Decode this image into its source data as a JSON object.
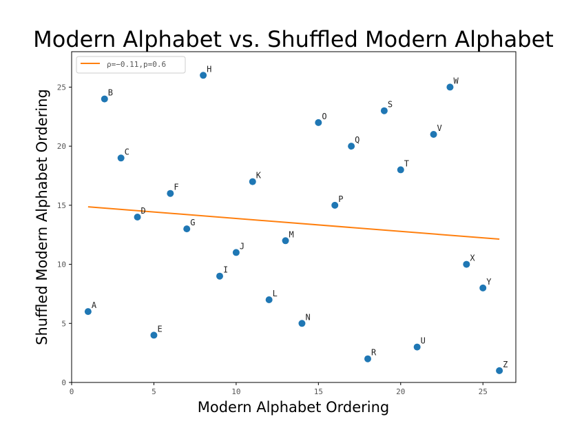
{
  "chart_data": {
    "type": "scatter",
    "title": "Modern Alphabet vs. Shuffled Modern Alphabet",
    "xlabel": "Modern Alphabet Ordering",
    "ylabel": "Shuffled Modern Alphabet Ordering",
    "xlim": [
      0,
      27
    ],
    "ylim": [
      0,
      28
    ],
    "xticks": [
      0,
      5,
      10,
      15,
      20,
      25
    ],
    "yticks": [
      0,
      5,
      10,
      15,
      20,
      25
    ],
    "grid": false,
    "legend_position": "top-left",
    "points": [
      {
        "label": "A",
        "x": 1,
        "y": 6
      },
      {
        "label": "B",
        "x": 2,
        "y": 24
      },
      {
        "label": "C",
        "x": 3,
        "y": 19
      },
      {
        "label": "D",
        "x": 4,
        "y": 14
      },
      {
        "label": "E",
        "x": 5,
        "y": 4
      },
      {
        "label": "F",
        "x": 6,
        "y": 16
      },
      {
        "label": "G",
        "x": 7,
        "y": 13
      },
      {
        "label": "H",
        "x": 8,
        "y": 26
      },
      {
        "label": "I",
        "x": 9,
        "y": 9
      },
      {
        "label": "J",
        "x": 10,
        "y": 11
      },
      {
        "label": "K",
        "x": 11,
        "y": 17
      },
      {
        "label": "L",
        "x": 12,
        "y": 7
      },
      {
        "label": "M",
        "x": 13,
        "y": 12
      },
      {
        "label": "N",
        "x": 14,
        "y": 5
      },
      {
        "label": "O",
        "x": 15,
        "y": 22
      },
      {
        "label": "P",
        "x": 16,
        "y": 15
      },
      {
        "label": "Q",
        "x": 17,
        "y": 20
      },
      {
        "label": "R",
        "x": 18,
        "y": 2
      },
      {
        "label": "S",
        "x": 19,
        "y": 23
      },
      {
        "label": "T",
        "x": 20,
        "y": 18
      },
      {
        "label": "U",
        "x": 21,
        "y": 3
      },
      {
        "label": "V",
        "x": 22,
        "y": 21
      },
      {
        "label": "W",
        "x": 23,
        "y": 25
      },
      {
        "label": "X",
        "x": 24,
        "y": 10
      },
      {
        "label": "Y",
        "x": 25,
        "y": 8
      },
      {
        "label": "Z",
        "x": 26,
        "y": 1
      }
    ],
    "fit_line": {
      "name": "ρ=−0.11,p=0.6",
      "x": [
        1,
        26
      ],
      "y": [
        14.87,
        12.13
      ]
    },
    "colors": {
      "points": "#1f77b4",
      "fit_line": "#ff7f0e"
    }
  }
}
